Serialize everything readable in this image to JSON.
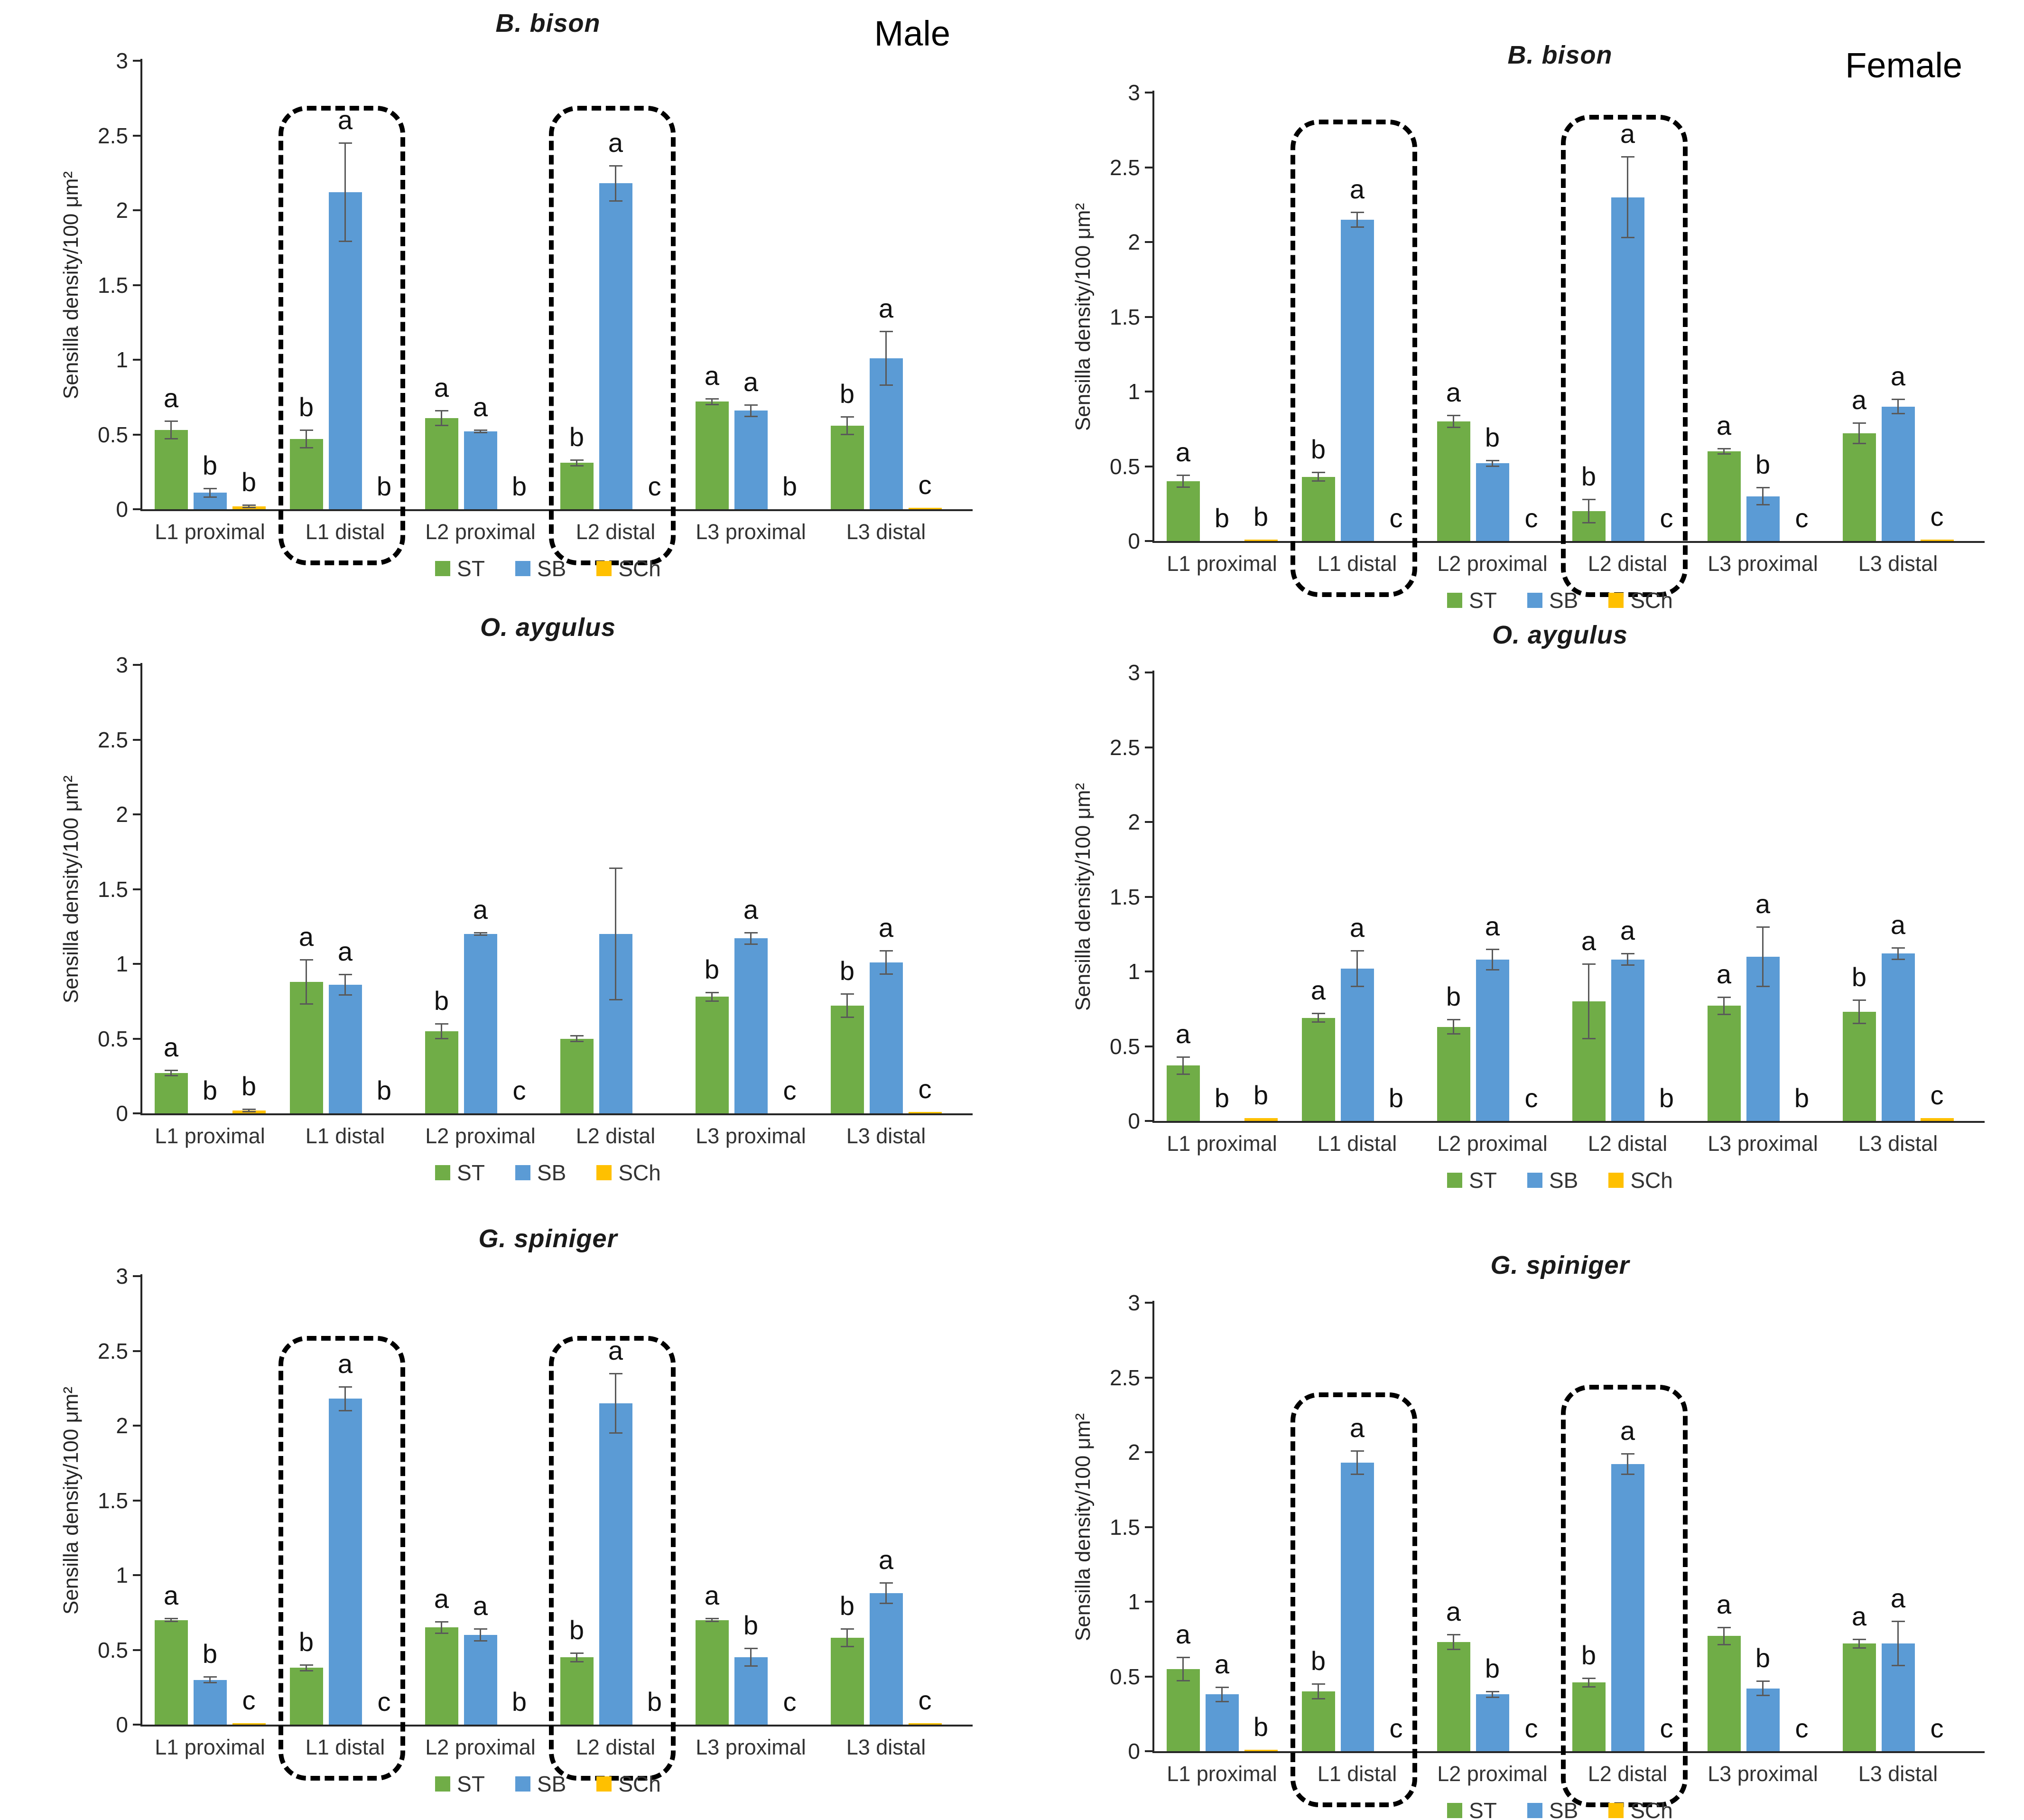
{
  "figure": {
    "male_label": "Male",
    "female_label": "Female",
    "colors": {
      "ST": "#70AD47",
      "SB": "#5B9BD5",
      "SCh": "#FFC000",
      "error_bar": "#595959",
      "axis": "#262626",
      "highlight_box": "#000000"
    }
  },
  "chart_data": [
    {
      "type": "bar",
      "title": "B. bison",
      "corner_label": "Male",
      "ylabel": "Sensilla density/100 μm²",
      "ylim": [
        0,
        3
      ],
      "yticks": [
        0,
        0.5,
        1,
        1.5,
        2,
        2.5,
        3
      ],
      "grid": false,
      "legend_position": "bottom",
      "legend": [
        "ST",
        "SB",
        "SCh"
      ],
      "categories": [
        "L1 proximal",
        "L1 distal",
        "L2 proximal",
        "L2 distal",
        "L3 proximal",
        "L3 distal"
      ],
      "series": [
        {
          "name": "ST",
          "values": [
            0.53,
            0.47,
            0.61,
            0.31,
            0.72,
            0.56
          ],
          "errors": [
            0.06,
            0.06,
            0.05,
            0.02,
            0.02,
            0.06
          ],
          "letters": [
            "a",
            "b",
            "a",
            "b",
            "a",
            "b"
          ]
        },
        {
          "name": "SB",
          "values": [
            0.11,
            2.12,
            0.52,
            2.18,
            0.66,
            1.01
          ],
          "errors": [
            0.03,
            0.33,
            0.01,
            0.12,
            0.04,
            0.18
          ],
          "letters": [
            "b",
            "a",
            "a",
            "a",
            "a",
            "a"
          ]
        },
        {
          "name": "SCh",
          "values": [
            0.02,
            0,
            0,
            0,
            0,
            0.01
          ],
          "errors": [
            0.01,
            0,
            0,
            0,
            0,
            0
          ],
          "letters": [
            "b",
            "b",
            "b",
            "c",
            "b",
            "c"
          ]
        }
      ],
      "highlight_boxes": [
        {
          "category": "L1 distal",
          "top_value": 2.7
        },
        {
          "category": "L2 distal",
          "top_value": 2.7
        }
      ]
    },
    {
      "type": "bar",
      "title": "B. bison",
      "corner_label": "Female",
      "ylabel": "Sensilla density/100 μm²",
      "ylim": [
        0,
        3
      ],
      "yticks": [
        0,
        0.5,
        1,
        1.5,
        2,
        2.5,
        3
      ],
      "grid": false,
      "legend_position": "bottom",
      "legend": [
        "ST",
        "SB",
        "SCh"
      ],
      "categories": [
        "L1 proximal",
        "L1 distal",
        "L2 proximal",
        "L2 distal",
        "L3 proximal",
        "L3 distal"
      ],
      "series": [
        {
          "name": "ST",
          "values": [
            0.4,
            0.43,
            0.8,
            0.2,
            0.6,
            0.72
          ],
          "errors": [
            0.04,
            0.03,
            0.04,
            0.08,
            0.02,
            0.07
          ],
          "letters": [
            "a",
            "b",
            "a",
            "b",
            "a",
            "a"
          ]
        },
        {
          "name": "SB",
          "values": [
            0,
            2.15,
            0.52,
            2.3,
            0.3,
            0.9
          ],
          "errors": [
            0,
            0.05,
            0.02,
            0.27,
            0.06,
            0.05
          ],
          "letters": [
            "b",
            "a",
            "b",
            "a",
            "b",
            "a"
          ]
        },
        {
          "name": "SCh",
          "values": [
            0.01,
            0,
            0,
            0,
            0,
            0.01
          ],
          "errors": [
            0,
            0,
            0,
            0,
            0,
            0
          ],
          "letters": [
            "b",
            "c",
            "c",
            "c",
            "c",
            "c"
          ]
        }
      ],
      "highlight_boxes": [
        {
          "category": "L1 distal",
          "top_value": 2.82
        },
        {
          "category": "L2 distal",
          "top_value": 2.85
        }
      ]
    },
    {
      "type": "bar",
      "title": "O. aygulus",
      "corner_label": "",
      "ylabel": "Sensilla density/100 μm²",
      "ylim": [
        0,
        3
      ],
      "yticks": [
        0,
        0.5,
        1,
        1.5,
        2,
        2.5,
        3
      ],
      "grid": false,
      "legend_position": "bottom",
      "legend": [
        "ST",
        "SB",
        "SCh"
      ],
      "categories": [
        "L1 proximal",
        "L1 distal",
        "L2 proximal",
        "L2 distal",
        "L3 proximal",
        "L3 distal"
      ],
      "series": [
        {
          "name": "ST",
          "values": [
            0.27,
            0.88,
            0.55,
            0.5,
            0.78,
            0.72
          ],
          "errors": [
            0.02,
            0.15,
            0.05,
            0.02,
            0.03,
            0.08
          ],
          "letters": [
            "a",
            "a",
            "b",
            "",
            "b",
            "b"
          ]
        },
        {
          "name": "SB",
          "values": [
            0,
            0.86,
            1.2,
            1.2,
            1.17,
            1.01
          ],
          "errors": [
            0,
            0.07,
            0.01,
            0.44,
            0.04,
            0.08
          ],
          "letters": [
            "b",
            "a",
            "a",
            "",
            "a",
            "a"
          ]
        },
        {
          "name": "SCh",
          "values": [
            0.02,
            0,
            0,
            0,
            0,
            0.01
          ],
          "errors": [
            0.01,
            0,
            0,
            0,
            0,
            0
          ],
          "letters": [
            "b",
            "b",
            "c",
            "",
            "c",
            "c"
          ]
        }
      ],
      "highlight_boxes": []
    },
    {
      "type": "bar",
      "title": "O. aygulus",
      "corner_label": "",
      "ylabel": "Sensilla density/100 μm²",
      "ylim": [
        0,
        3
      ],
      "yticks": [
        0,
        0.5,
        1,
        1.5,
        2,
        2.5,
        3
      ],
      "grid": false,
      "legend_position": "bottom",
      "legend": [
        "ST",
        "SB",
        "SCh"
      ],
      "categories": [
        "L1 proximal",
        "L1 distal",
        "L2 proximal",
        "L2 distal",
        "L3 proximal",
        "L3 distal"
      ],
      "series": [
        {
          "name": "ST",
          "values": [
            0.37,
            0.69,
            0.63,
            0.8,
            0.77,
            0.73
          ],
          "errors": [
            0.06,
            0.03,
            0.05,
            0.25,
            0.06,
            0.08
          ],
          "letters": [
            "a",
            "a",
            "b",
            "a",
            "a",
            "b"
          ]
        },
        {
          "name": "SB",
          "values": [
            0,
            1.02,
            1.08,
            1.08,
            1.1,
            1.12
          ],
          "errors": [
            0,
            0.12,
            0.07,
            0.04,
            0.2,
            0.04
          ],
          "letters": [
            "b",
            "a",
            "a",
            "a",
            "a",
            "a"
          ]
        },
        {
          "name": "SCh",
          "values": [
            0.02,
            0,
            0,
            0,
            0,
            0.02
          ],
          "errors": [
            0,
            0,
            0,
            0,
            0,
            0
          ],
          "letters": [
            "b",
            "b",
            "c",
            "b",
            "b",
            "c"
          ]
        }
      ],
      "highlight_boxes": []
    },
    {
      "type": "bar",
      "title": "G. spiniger",
      "corner_label": "",
      "ylabel": "Sensilla density/100 μm²",
      "ylim": [
        0,
        3
      ],
      "yticks": [
        0,
        0.5,
        1,
        1.5,
        2,
        2.5,
        3
      ],
      "grid": false,
      "legend_position": "bottom",
      "legend": [
        "ST",
        "SB",
        "SCh"
      ],
      "categories": [
        "L1 proximal",
        "L1 distal",
        "L2 proximal",
        "L2 distal",
        "L3 proximal",
        "L3 distal"
      ],
      "series": [
        {
          "name": "ST",
          "values": [
            0.7,
            0.38,
            0.65,
            0.45,
            0.7,
            0.58
          ],
          "errors": [
            0.01,
            0.02,
            0.04,
            0.03,
            0.01,
            0.06
          ],
          "letters": [
            "a",
            "b",
            "a",
            "b",
            "a",
            "b"
          ]
        },
        {
          "name": "SB",
          "values": [
            0.3,
            2.18,
            0.6,
            2.15,
            0.45,
            0.88
          ],
          "errors": [
            0.02,
            0.08,
            0.04,
            0.2,
            0.06,
            0.07
          ],
          "letters": [
            "b",
            "a",
            "a",
            "a",
            "b",
            "a"
          ]
        },
        {
          "name": "SCh",
          "values": [
            0.01,
            0,
            0,
            0,
            0,
            0.01
          ],
          "errors": [
            0,
            0,
            0,
            0,
            0,
            0
          ],
          "letters": [
            "c",
            "c",
            "b",
            "b",
            "c",
            "c"
          ]
        }
      ],
      "highlight_boxes": [
        {
          "category": "L1 distal",
          "top_value": 2.6
        },
        {
          "category": "L2 distal",
          "top_value": 2.6
        }
      ]
    },
    {
      "type": "bar",
      "title": "G. spiniger",
      "corner_label": "",
      "ylabel": "Sensilla density/100 μm²",
      "ylim": [
        0,
        3
      ],
      "yticks": [
        0,
        0.5,
        1,
        1.5,
        2,
        2.5,
        3
      ],
      "grid": false,
      "legend_position": "bottom",
      "legend": [
        "ST",
        "SB",
        "SCh"
      ],
      "categories": [
        "L1 proximal",
        "L1 distal",
        "L2 proximal",
        "L2 distal",
        "L3 proximal",
        "L3 distal"
      ],
      "series": [
        {
          "name": "ST",
          "values": [
            0.55,
            0.4,
            0.73,
            0.46,
            0.77,
            0.72
          ],
          "errors": [
            0.08,
            0.05,
            0.05,
            0.03,
            0.06,
            0.03
          ],
          "letters": [
            "a",
            "b",
            "a",
            "b",
            "a",
            "a"
          ]
        },
        {
          "name": "SB",
          "values": [
            0.38,
            1.93,
            0.38,
            1.92,
            0.42,
            0.72
          ],
          "errors": [
            0.05,
            0.08,
            0.02,
            0.07,
            0.05,
            0.15
          ],
          "letters": [
            "a",
            "a",
            "b",
            "a",
            "b",
            "a"
          ]
        },
        {
          "name": "SCh",
          "values": [
            0.01,
            0,
            0,
            0,
            0,
            0
          ],
          "errors": [
            0,
            0,
            0,
            0,
            0,
            0
          ],
          "letters": [
            "b",
            "c",
            "c",
            "c",
            "c",
            "c"
          ]
        }
      ],
      "highlight_boxes": [
        {
          "category": "L1 distal",
          "top_value": 2.4
        },
        {
          "category": "L2 distal",
          "top_value": 2.45
        }
      ]
    }
  ]
}
